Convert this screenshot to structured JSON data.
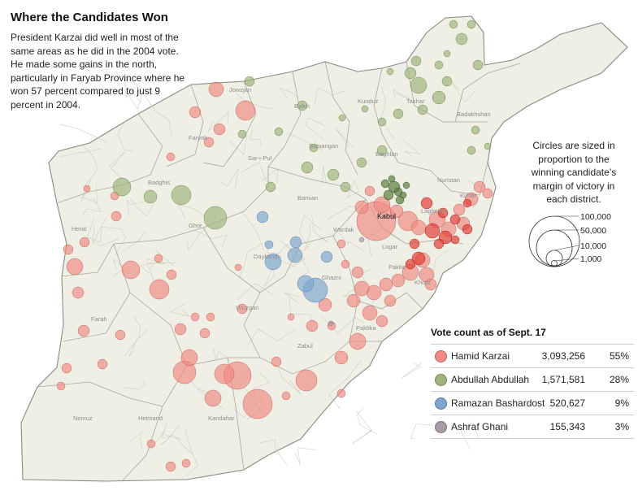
{
  "header": {
    "title": "Where the Candidates Won",
    "description": "President Karzai did well in most of the same areas as he did in the 2004 vote. He made some gains in the north, particularly in Faryab Province where he won 57 percent compared to just 9 percent in 2004."
  },
  "size_note": "Circles are sized in proportion to the winning candidate’s margin of victory in each district.",
  "size_scale": {
    "labels": [
      "100,000",
      "50,000",
      "10,000",
      "1,000"
    ],
    "values": [
      100000,
      50000,
      10000,
      1000
    ]
  },
  "legend": {
    "title": "Vote count as of Sept. 17",
    "candidates": [
      {
        "name": "Hamid Karzai",
        "votes": "3,093,256",
        "percent": "55%",
        "color": "#f08a82"
      },
      {
        "name": "Abdullah Abdullah",
        "votes": "1,571,581",
        "percent": "28%",
        "color": "#9eb47c"
      },
      {
        "name": "Ramazan Bashardost",
        "votes": "520,627",
        "percent": "9%",
        "color": "#7ea6d0"
      },
      {
        "name": "Ashraf Ghani",
        "votes": "155,343",
        "percent": "3%",
        "color": "#a89aa4"
      }
    ]
  },
  "map": {
    "land_color": "#f0efe5",
    "border_color": "#a8a8a0",
    "capital": "Kabul",
    "place_labels": [
      "Jowzjan",
      "Balkh",
      "Kunduz",
      "Takhar",
      "Badakhshan",
      "Faryab",
      "Samangan",
      "Sar-i-Pul",
      "Baghlan",
      "Badghis",
      "Nuristan",
      "Kunar",
      "Bamian",
      "Wardak",
      "Logar",
      "Laghman",
      "Herat",
      "Ghor",
      "Daykondi",
      "Ghazni",
      "Paktia",
      "Khost",
      "Uruzgan",
      "Farah",
      "Paktika",
      "Zabul",
      "Nimruz",
      "Helmand",
      "Kandahar"
    ]
  }
}
